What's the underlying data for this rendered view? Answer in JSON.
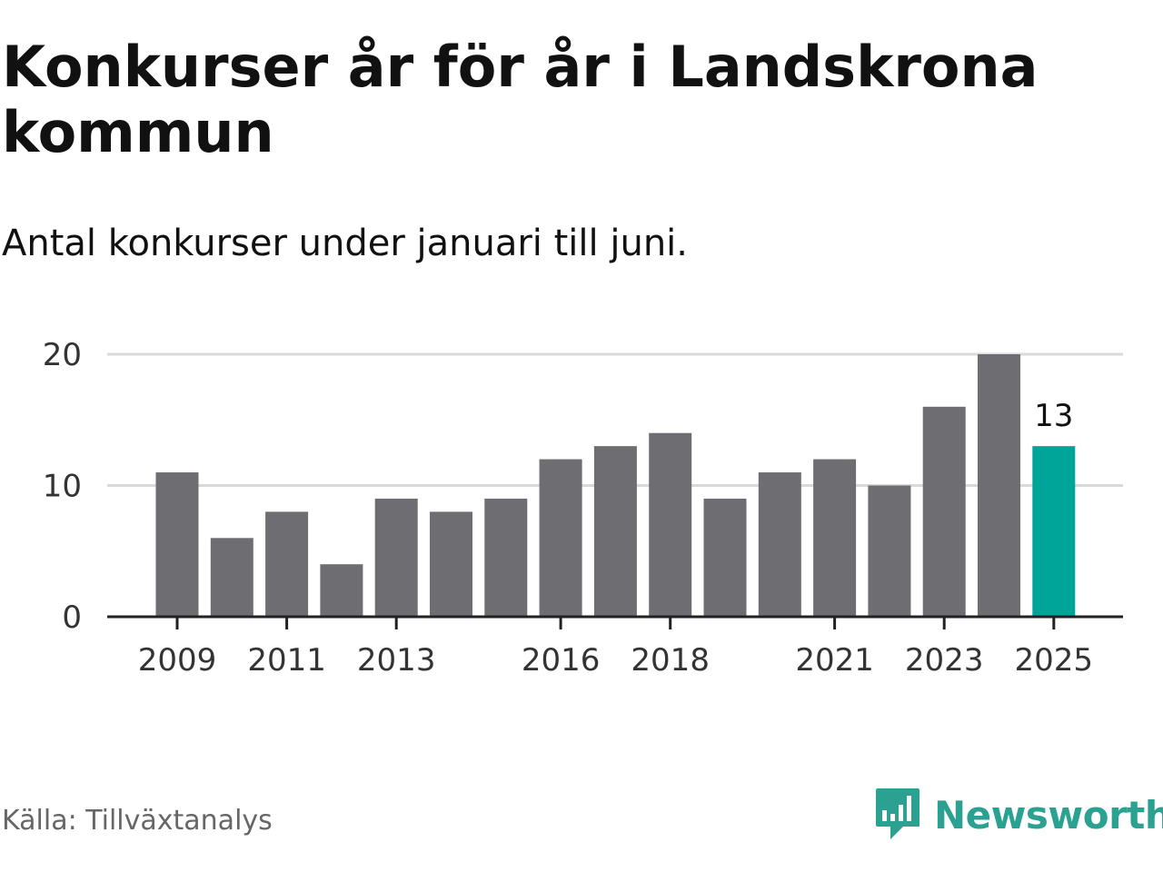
{
  "title": "Konkurser år för år i Landskrona kommun",
  "subtitle": "Antal konkurser under januari till juni.",
  "source": "Källa: Tillväxtanalys",
  "brand": {
    "name": "Newsworthy",
    "color": "#2aa191",
    "icon": "newsworthy-logo-icon"
  },
  "colors": {
    "bar": "#6e6d72",
    "highlight": "#00a59a",
    "grid": "#d9d9d9",
    "axis": "#222222"
  },
  "chart_data": {
    "type": "bar",
    "categories": [
      "2009",
      "2010",
      "2011",
      "2012",
      "2013",
      "2014",
      "2015",
      "2016",
      "2017",
      "2018",
      "2019",
      "2020",
      "2021",
      "2022",
      "2023",
      "2024",
      "2025"
    ],
    "values": [
      11,
      6,
      8,
      4,
      9,
      8,
      9,
      12,
      13,
      14,
      9,
      11,
      12,
      10,
      16,
      20,
      13
    ],
    "x_tick_labels": [
      "2009",
      "2011",
      "2013",
      "2016",
      "2018",
      "2021",
      "2023",
      "2025"
    ],
    "y_ticks": [
      0,
      10,
      20
    ],
    "ylim": [
      0,
      20
    ],
    "highlight_category": "2025",
    "data_labels": [
      {
        "category": "2025",
        "text": "13"
      }
    ],
    "grid": true,
    "xlabel": "",
    "ylabel": ""
  }
}
